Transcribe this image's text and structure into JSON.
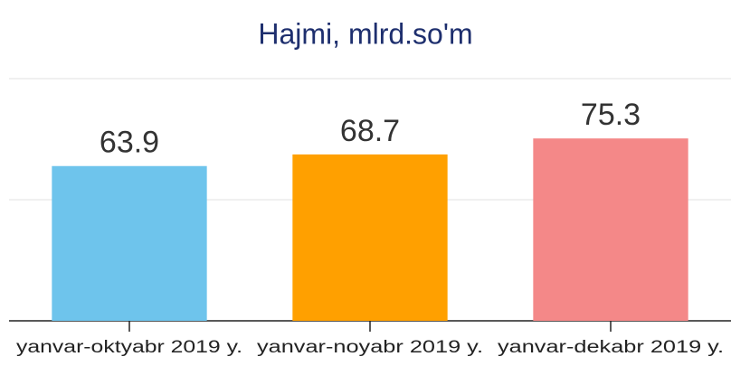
{
  "chart_data": {
    "type": "bar",
    "title": "Hajmi, mlrd.so'm",
    "categories": [
      "yanvar-oktyabr 2019 y.",
      "yanvar-noyabr 2019 y.",
      "yanvar-dekabr 2019 y."
    ],
    "values": [
      63.9,
      68.7,
      75.3
    ],
    "colors": [
      "#6ec4ec",
      "#ffa000",
      "#f48888"
    ],
    "ylim": [
      0,
      100
    ],
    "yticks": [
      0,
      50,
      100
    ],
    "grid": true
  }
}
